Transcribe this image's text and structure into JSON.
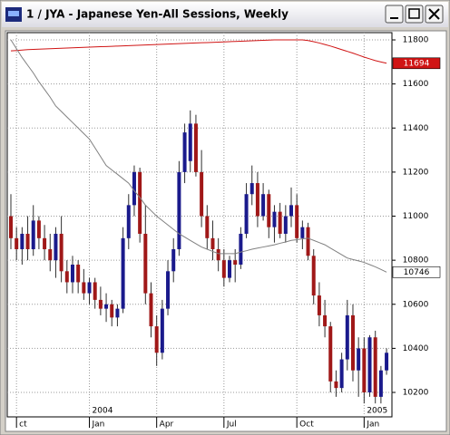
{
  "window": {
    "title": "1 / JYA - Japanese Yen-All Sessions, Weekly"
  },
  "chart_data": {
    "type": "candlestick",
    "categories": [
      null,
      "ct",
      null,
      null,
      null,
      null,
      null,
      null,
      null,
      null,
      null,
      null,
      null,
      null,
      "Jan",
      null,
      null,
      null,
      null,
      null,
      null,
      null,
      null,
      null,
      null,
      null,
      "Apr",
      null,
      null,
      null,
      null,
      null,
      null,
      null,
      null,
      null,
      null,
      null,
      "Jul",
      null,
      null,
      null,
      null,
      null,
      null,
      null,
      null,
      null,
      null,
      null,
      null,
      "Oct",
      null,
      null,
      null,
      null,
      null,
      null,
      null,
      null,
      null,
      null,
      null,
      "Jan",
      null,
      null,
      null,
      null
    ],
    "years": [
      null,
      null,
      null,
      null,
      null,
      null,
      null,
      null,
      null,
      null,
      null,
      null,
      null,
      null,
      "2004",
      null,
      null,
      null,
      null,
      null,
      null,
      null,
      null,
      null,
      null,
      null,
      null,
      null,
      null,
      null,
      null,
      null,
      null,
      null,
      null,
      null,
      null,
      null,
      null,
      null,
      null,
      null,
      null,
      null,
      null,
      null,
      null,
      null,
      null,
      null,
      null,
      null,
      null,
      null,
      null,
      null,
      null,
      null,
      null,
      null,
      null,
      null,
      null,
      "2005",
      null,
      null,
      null,
      null
    ],
    "open": [
      11000,
      10900,
      10850,
      10920,
      10850,
      10980,
      10900,
      10850,
      10800,
      10920,
      10750,
      10700,
      10780,
      10700,
      10650,
      10700,
      10620,
      10580,
      10600,
      10540,
      10580,
      10900,
      11050,
      11200,
      10920,
      10650,
      10500,
      10380,
      10580,
      10750,
      10850,
      11200,
      11250,
      11420,
      11200,
      11000,
      10900,
      10850,
      10800,
      10720,
      10800,
      10780,
      10920,
      11100,
      11150,
      11000,
      11100,
      10950,
      11020,
      10920,
      11000,
      11050,
      10900,
      10950,
      10820,
      10640,
      10550,
      10500,
      10250,
      10220,
      10350,
      10550,
      10300,
      10400,
      10200,
      10450,
      10180,
      10300
    ],
    "high": [
      11100,
      10950,
      10950,
      11000,
      11050,
      11000,
      10960,
      10920,
      10950,
      11000,
      10800,
      10820,
      10800,
      10760,
      10720,
      10720,
      10680,
      10650,
      10620,
      10600,
      10950,
      11100,
      11230,
      11220,
      11050,
      10700,
      10550,
      10620,
      10800,
      10900,
      11250,
      11420,
      11480,
      11460,
      11300,
      11050,
      10980,
      10900,
      10850,
      10820,
      10850,
      10950,
      11150,
      11230,
      11200,
      11150,
      11120,
      11050,
      11060,
      11050,
      11130,
      11100,
      10980,
      10970,
      10850,
      10700,
      10620,
      10520,
      10300,
      10380,
      10620,
      10600,
      10450,
      10450,
      10460,
      10480,
      10320,
      10400
    ],
    "low": [
      10850,
      10800,
      10780,
      10800,
      10820,
      10850,
      10800,
      10750,
      10720,
      10700,
      10650,
      10650,
      10650,
      10620,
      10600,
      10580,
      10550,
      10520,
      10500,
      10500,
      10560,
      10850,
      11000,
      10880,
      10600,
      10450,
      10320,
      10350,
      10550,
      10700,
      10820,
      11150,
      11200,
      11180,
      10950,
      10850,
      10800,
      10750,
      10680,
      10700,
      10700,
      10760,
      10900,
      11050,
      10950,
      10980,
      10900,
      10880,
      10900,
      10880,
      10950,
      10880,
      10850,
      10800,
      10600,
      10500,
      10450,
      10200,
      10180,
      10200,
      10300,
      10250,
      10180,
      10150,
      10180,
      10150,
      10150,
      10280
    ],
    "close": [
      10900,
      10850,
      10920,
      10850,
      10980,
      10900,
      10850,
      10800,
      10920,
      10750,
      10700,
      10780,
      10700,
      10650,
      10700,
      10620,
      10580,
      10600,
      10540,
      10580,
      10900,
      11050,
      11200,
      10920,
      10650,
      10500,
      10380,
      10580,
      10750,
      10850,
      11200,
      11380,
      11420,
      11200,
      11000,
      10900,
      10850,
      10800,
      10720,
      10800,
      10780,
      10920,
      11100,
      11150,
      11000,
      11100,
      10950,
      11020,
      10920,
      11000,
      11050,
      10900,
      10950,
      10820,
      10640,
      10550,
      10500,
      10250,
      10220,
      10350,
      10550,
      10300,
      10400,
      10200,
      10450,
      10180,
      10300,
      10380
    ],
    "up_color": "#1a1a8c",
    "down_color": "#a01818",
    "overlays": [
      {
        "color": "#d01414",
        "label_fill": "#d01414",
        "label_text_color": "#ffffff",
        "values": [
          11750,
          11752,
          11754,
          11756,
          11757,
          11758,
          11759,
          11760,
          11761,
          11762,
          11763,
          11764,
          11765,
          11766,
          11767,
          11768,
          11769,
          11770,
          11771,
          11772,
          11773,
          11774,
          11775,
          11776,
          11777,
          11778,
          11779,
          11780,
          11781,
          11782,
          11783,
          11784,
          11785,
          11786,
          11787,
          11788,
          11789,
          11790,
          11791,
          11792,
          11793,
          11794,
          11795,
          11796,
          11797,
          11798,
          11799,
          11800,
          11800,
          11800,
          11800,
          11800,
          11800,
          11797,
          11792,
          11786,
          11779,
          11772,
          11764,
          11756,
          11748,
          11740,
          11731,
          11722,
          11714,
          11706,
          11700,
          11694
        ]
      },
      {
        "color": "#808080",
        "label_fill": "#ffffff",
        "label_text_color": "#000000",
        "values": [
          11800,
          11760,
          11720,
          11685,
          11650,
          11610,
          11575,
          11540,
          11500,
          11475,
          11450,
          11425,
          11400,
          11375,
          11350,
          11310,
          11270,
          11230,
          11210,
          11190,
          11170,
          11150,
          11115,
          11085,
          11050,
          11025,
          11000,
          10980,
          10960,
          10940,
          10920,
          10905,
          10890,
          10875,
          10860,
          10850,
          10840,
          10830,
          10830,
          10830,
          10830,
          10837,
          10843,
          10850,
          10855,
          10860,
          10865,
          10870,
          10877,
          10883,
          10890,
          10893,
          10897,
          10900,
          10890,
          10880,
          10870,
          10855,
          10840,
          10825,
          10810,
          10803,
          10797,
          10790,
          10780,
          10770,
          10758,
          10746
        ]
      }
    ],
    "ylim": [
      10089,
      11833
    ],
    "yticks": [
      10200,
      10400,
      10600,
      10800,
      11000,
      11200,
      11400,
      11600,
      11800
    ],
    "grid": true
  }
}
